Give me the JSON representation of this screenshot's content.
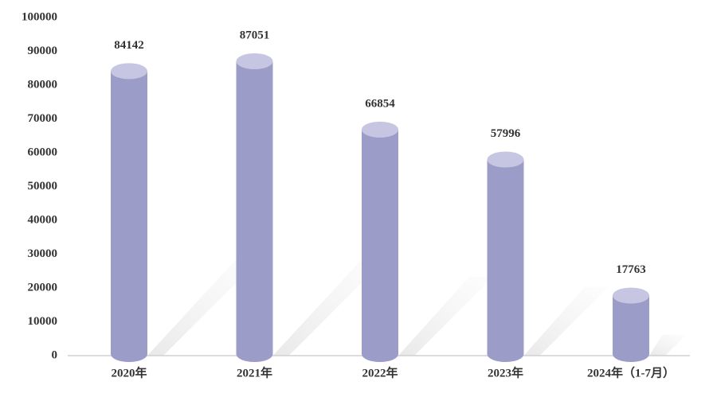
{
  "chart_data": {
    "type": "cylinder-bar",
    "categories": [
      "2020年",
      "2021年",
      "2022年",
      "2023年",
      "2024年（1-7月）"
    ],
    "values": [
      84142,
      87051,
      66854,
      57996,
      17763
    ],
    "color": "#9c9cc9",
    "ylim": [
      0,
      100000
    ],
    "yticks": [
      0,
      10000,
      20000,
      30000,
      40000,
      50000,
      60000,
      70000,
      80000,
      90000,
      100000
    ]
  }
}
